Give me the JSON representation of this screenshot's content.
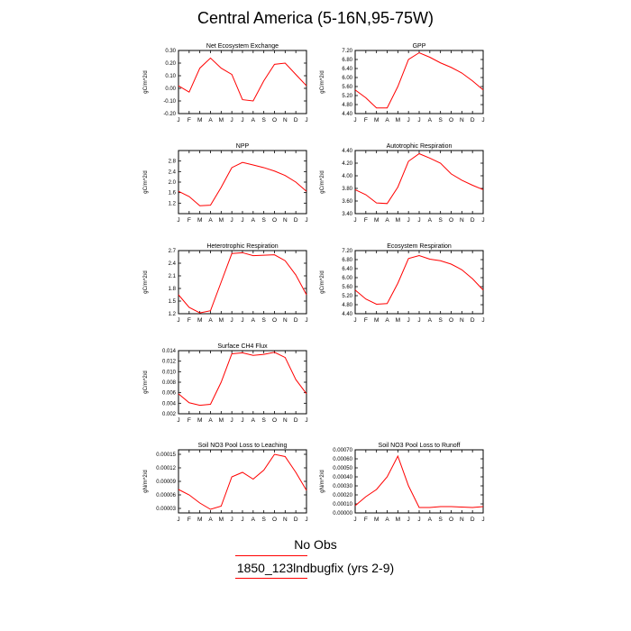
{
  "page": {
    "title": "Central America (5-16N,95-75W)",
    "legend": {
      "obs_label": "No Obs",
      "case_label": "1850_123lndbugfix (yrs 2-9)",
      "line_color": "#ff0000"
    }
  },
  "chart_data": [
    {
      "id": "net-ecosystem-exchange",
      "type": "line",
      "title": "Net Ecosystem Exchange",
      "ylabel": "gC/m^2/d",
      "categories": [
        "J",
        "F",
        "M",
        "A",
        "M",
        "J",
        "J",
        "A",
        "S",
        "O",
        "N",
        "D",
        "J"
      ],
      "ylim": [
        -0.2,
        0.3
      ],
      "yticks": [
        "-0.20",
        "-0.10",
        "0.00",
        "0.10",
        "0.20",
        "0.30"
      ],
      "ytick_values": [
        -0.2,
        -0.1,
        0.0,
        0.1,
        0.2,
        0.3
      ],
      "series": [
        {
          "color": "#ff0000",
          "values": [
            0.02,
            -0.03,
            0.16,
            0.24,
            0.16,
            0.11,
            -0.09,
            -0.1,
            0.06,
            0.19,
            0.2,
            0.11,
            0.02
          ]
        }
      ]
    },
    {
      "id": "gpp",
      "type": "line",
      "title": "GPP",
      "ylabel": "gC/m^2/d",
      "categories": [
        "J",
        "F",
        "M",
        "A",
        "M",
        "J",
        "J",
        "A",
        "S",
        "O",
        "N",
        "D",
        "J"
      ],
      "ylim": [
        4.4,
        7.2
      ],
      "yticks": [
        "4.40",
        "4.80",
        "5.20",
        "5.60",
        "6.00",
        "6.40",
        "6.80",
        "7.20"
      ],
      "ytick_values": [
        4.4,
        4.8,
        5.2,
        5.6,
        6.0,
        6.4,
        6.8,
        7.2
      ],
      "series": [
        {
          "color": "#ff0000",
          "values": [
            5.45,
            5.1,
            4.65,
            4.65,
            5.6,
            6.8,
            7.1,
            6.9,
            6.65,
            6.45,
            6.2,
            5.85,
            5.45
          ]
        }
      ]
    },
    {
      "id": "npp",
      "type": "line",
      "title": "NPP",
      "ylabel": "gC/m^2/d",
      "categories": [
        "J",
        "F",
        "M",
        "A",
        "M",
        "J",
        "J",
        "A",
        "S",
        "O",
        "N",
        "D",
        "J"
      ],
      "ylim": [
        0.8,
        3.2
      ],
      "yticks": [
        "1.2",
        "1.6",
        "2.0",
        "2.4",
        "2.8"
      ],
      "ytick_values": [
        1.2,
        1.6,
        2.0,
        2.4,
        2.8
      ],
      "series": [
        {
          "color": "#ff0000",
          "values": [
            1.65,
            1.45,
            1.1,
            1.12,
            1.8,
            2.55,
            2.75,
            2.65,
            2.55,
            2.42,
            2.25,
            2.0,
            1.65
          ]
        }
      ]
    },
    {
      "id": "autotrophic-respiration",
      "type": "line",
      "title": "Autotrophic Respiration",
      "ylabel": "gC/m^2/d",
      "categories": [
        "J",
        "F",
        "M",
        "A",
        "M",
        "J",
        "J",
        "A",
        "S",
        "O",
        "N",
        "D",
        "J"
      ],
      "ylim": [
        3.4,
        4.4
      ],
      "yticks": [
        "3.40",
        "3.60",
        "3.80",
        "4.00",
        "4.20",
        "4.40"
      ],
      "ytick_values": [
        3.4,
        3.6,
        3.8,
        4.0,
        4.2,
        4.4
      ],
      "series": [
        {
          "color": "#ff0000",
          "values": [
            3.78,
            3.7,
            3.57,
            3.56,
            3.82,
            4.23,
            4.35,
            4.28,
            4.2,
            4.03,
            3.93,
            3.85,
            3.78
          ]
        }
      ]
    },
    {
      "id": "heterotrophic-respiration",
      "type": "line",
      "title": "Heterotrophic Respiration",
      "ylabel": "gC/m^2/d",
      "categories": [
        "J",
        "F",
        "M",
        "A",
        "M",
        "J",
        "J",
        "A",
        "S",
        "O",
        "N",
        "D",
        "J"
      ],
      "ylim": [
        1.2,
        2.7
      ],
      "yticks": [
        "1.2",
        "1.5",
        "1.8",
        "2.1",
        "2.4",
        "2.7"
      ],
      "ytick_values": [
        1.2,
        1.5,
        1.8,
        2.1,
        2.4,
        2.7
      ],
      "series": [
        {
          "color": "#ff0000",
          "values": [
            1.65,
            1.35,
            1.22,
            1.27,
            1.95,
            2.63,
            2.65,
            2.58,
            2.59,
            2.6,
            2.46,
            2.12,
            1.65
          ]
        }
      ]
    },
    {
      "id": "ecosystem-respiration",
      "type": "line",
      "title": "Ecosystem Respiration",
      "ylabel": "gC/m^2/d",
      "categories": [
        "J",
        "F",
        "M",
        "A",
        "M",
        "J",
        "J",
        "A",
        "S",
        "O",
        "N",
        "D",
        "J"
      ],
      "ylim": [
        4.4,
        7.2
      ],
      "yticks": [
        "4.40",
        "4.80",
        "5.20",
        "5.60",
        "6.00",
        "6.40",
        "6.80",
        "7.20"
      ],
      "ytick_values": [
        4.4,
        4.8,
        5.2,
        5.6,
        6.0,
        6.4,
        6.8,
        7.2
      ],
      "series": [
        {
          "color": "#ff0000",
          "values": [
            5.45,
            5.05,
            4.82,
            4.85,
            5.75,
            6.85,
            6.98,
            6.82,
            6.75,
            6.6,
            6.35,
            5.95,
            5.45
          ]
        }
      ]
    },
    {
      "id": "surface-ch4-flux",
      "type": "line",
      "title": "Surface CH4 Flux",
      "ylabel": "gC/m^2/d",
      "categories": [
        "J",
        "F",
        "M",
        "A",
        "M",
        "J",
        "J",
        "A",
        "S",
        "O",
        "N",
        "D",
        "J"
      ],
      "ylim": [
        0.002,
        0.014
      ],
      "yticks": [
        "0.002",
        "0.004",
        "0.006",
        "0.008",
        "0.010",
        "0.012",
        "0.014"
      ],
      "ytick_values": [
        0.002,
        0.004,
        0.006,
        0.008,
        0.01,
        0.012,
        0.014
      ],
      "series": [
        {
          "color": "#ff0000",
          "values": [
            0.0058,
            0.0041,
            0.0036,
            0.0038,
            0.008,
            0.0134,
            0.0136,
            0.0131,
            0.0133,
            0.0137,
            0.0127,
            0.0085,
            0.0058
          ]
        }
      ]
    },
    {
      "id": "soil-no3-leaching",
      "type": "line",
      "title": "Soil NO3 Pool Loss to Leaching",
      "ylabel": "gN/m^2/d",
      "categories": [
        "J",
        "F",
        "M",
        "A",
        "M",
        "J",
        "J",
        "A",
        "S",
        "O",
        "N",
        "D",
        "J"
      ],
      "ylim": [
        2e-05,
        0.00016
      ],
      "yticks": [
        "0.00003",
        "0.00006",
        "0.00009",
        "0.00012",
        "0.00015"
      ],
      "ytick_values": [
        3e-05,
        6e-05,
        9e-05,
        0.00012,
        0.00015
      ],
      "series": [
        {
          "color": "#ff0000",
          "values": [
            7.2e-05,
            6e-05,
            4.2e-05,
            2.8e-05,
            3.5e-05,
            0.0001,
            0.00011,
            9.5e-05,
            0.000115,
            0.00015,
            0.000145,
            0.00011,
            7e-05
          ]
        }
      ]
    },
    {
      "id": "soil-no3-runoff",
      "type": "line",
      "title": "Soil NO3 Pool Loss to Runoff",
      "ylabel": "gN/m^2/d",
      "categories": [
        "J",
        "F",
        "M",
        "A",
        "M",
        "J",
        "J",
        "A",
        "S",
        "O",
        "N",
        "D",
        "J"
      ],
      "ylim": [
        0.0,
        0.0007
      ],
      "yticks": [
        "0.00000",
        "0.00010",
        "0.00020",
        "0.00030",
        "0.00040",
        "0.00050",
        "0.00060",
        "0.00070"
      ],
      "ytick_values": [
        0.0,
        0.0001,
        0.0002,
        0.0003,
        0.0004,
        0.0005,
        0.0006,
        0.0007
      ],
      "series": [
        {
          "color": "#ff0000",
          "values": [
            8e-05,
            0.00018,
            0.00026,
            0.0004,
            0.00063,
            0.0003,
            6e-05,
            6e-05,
            7e-05,
            7e-05,
            6.5e-05,
            6e-05,
            7e-05
          ]
        }
      ]
    }
  ]
}
